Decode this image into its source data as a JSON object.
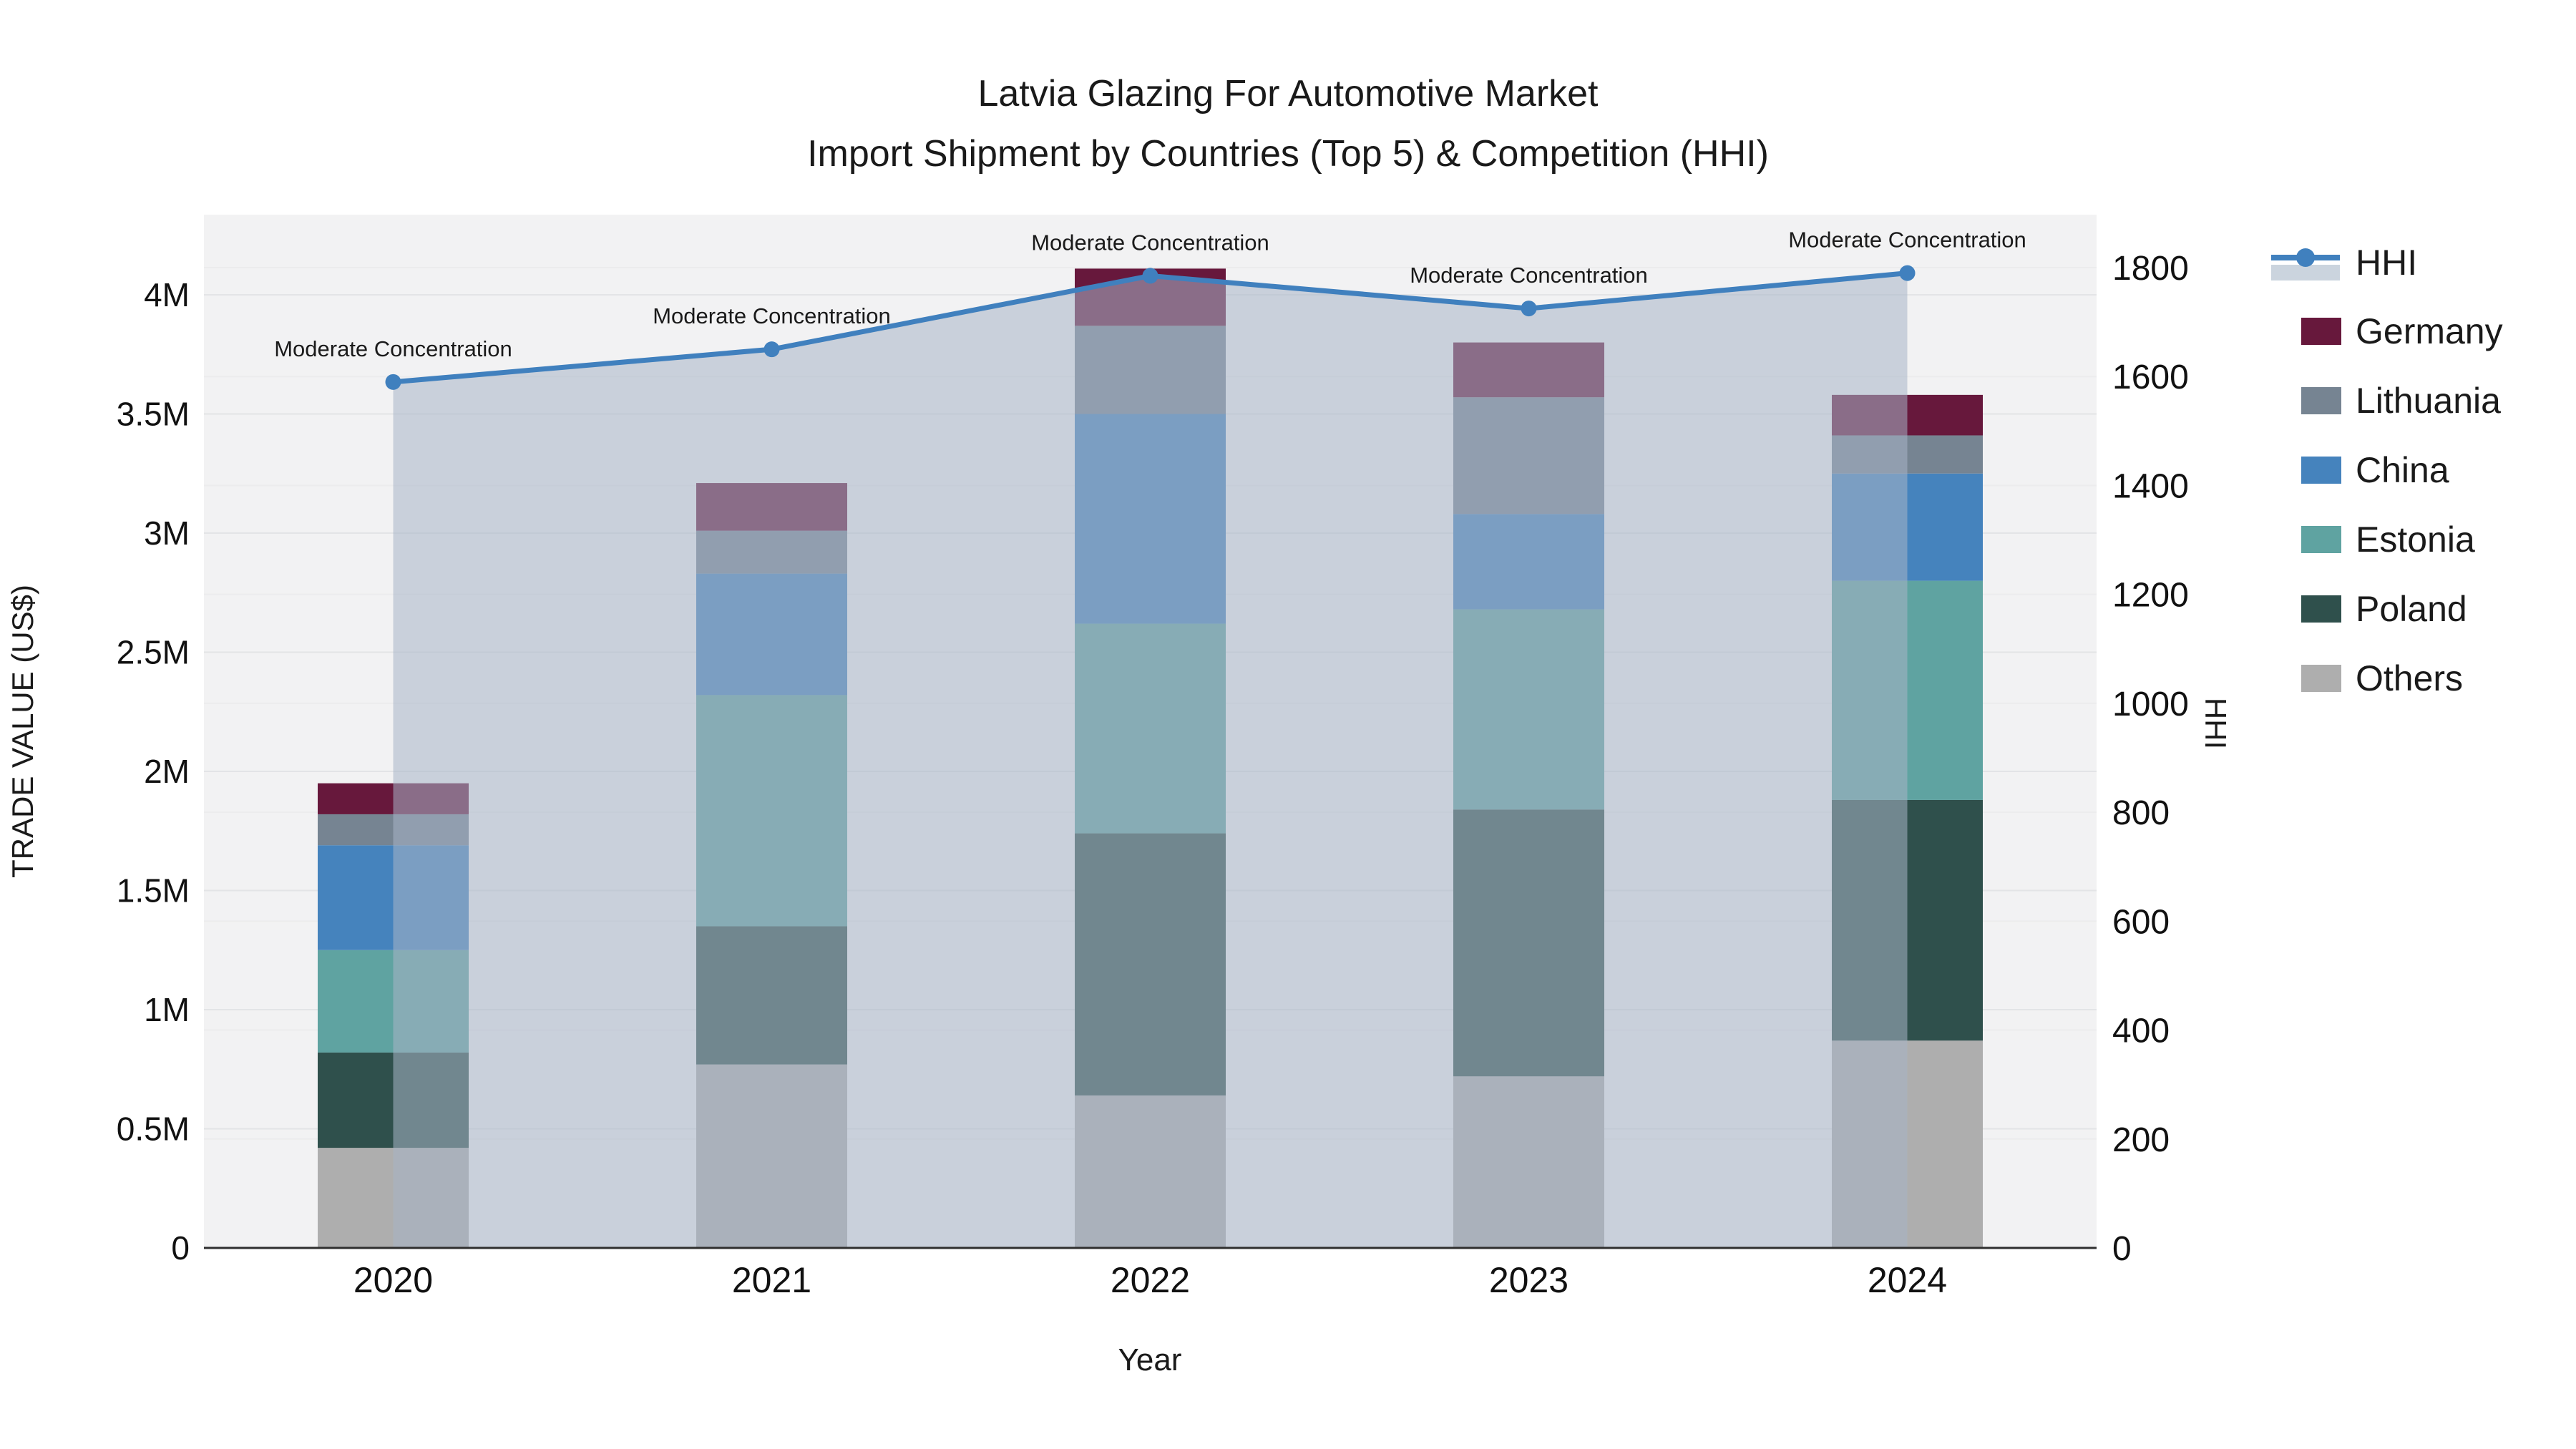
{
  "title": {
    "line1": "Latvia Glazing For Automotive Market",
    "line2": "Import Shipment by Countries (Top 5) & Competition (HHI)"
  },
  "axes": {
    "x": {
      "title": "Year",
      "categories": [
        "2020",
        "2021",
        "2022",
        "2023",
        "2024"
      ]
    },
    "y_left": {
      "title": "TRADE VALUE (US$)",
      "tick_labels": [
        "0",
        "0.5M",
        "1M",
        "1.5M",
        "2M",
        "2.5M",
        "3M",
        "3.5M",
        "4M"
      ],
      "tick_values": [
        0,
        0.5,
        1,
        1.5,
        2,
        2.5,
        3,
        3.5,
        4
      ]
    },
    "y_right": {
      "title": "HHI",
      "tick_labels": [
        "0",
        "200",
        "400",
        "600",
        "800",
        "1000",
        "1200",
        "1400",
        "1600",
        "1800"
      ],
      "tick_values": [
        0,
        200,
        400,
        600,
        800,
        1000,
        1200,
        1400,
        1600,
        1800
      ]
    }
  },
  "legend": {
    "items": [
      {
        "label": "HHI",
        "type": "line"
      },
      {
        "label": "Germany",
        "type": "swatch"
      },
      {
        "label": "Lithuania",
        "type": "swatch"
      },
      {
        "label": "China",
        "type": "swatch"
      },
      {
        "label": "Estonia",
        "type": "swatch"
      },
      {
        "label": "Poland",
        "type": "swatch"
      },
      {
        "label": "Others",
        "type": "swatch"
      }
    ]
  },
  "chart_data": {
    "type": "bar+line",
    "categories": [
      "2020",
      "2021",
      "2022",
      "2023",
      "2024"
    ],
    "value_unit": "million US$",
    "series": [
      {
        "name": "Others",
        "color": "#aeaeae",
        "values": [
          0.42,
          0.77,
          0.64,
          0.72,
          0.87
        ]
      },
      {
        "name": "Poland",
        "color": "#2f504c",
        "values": [
          0.4,
          0.58,
          1.1,
          1.12,
          1.01
        ]
      },
      {
        "name": "Estonia",
        "color": "#5fa3a1",
        "values": [
          0.43,
          0.97,
          0.88,
          0.84,
          0.92
        ]
      },
      {
        "name": "China",
        "color": "#4583bd",
        "values": [
          0.44,
          0.51,
          0.88,
          0.4,
          0.45
        ]
      },
      {
        "name": "Lithuania",
        "color": "#768492",
        "values": [
          0.13,
          0.18,
          0.37,
          0.49,
          0.16
        ]
      },
      {
        "name": "Germany",
        "color": "#67183c",
        "values": [
          0.13,
          0.2,
          0.24,
          0.23,
          0.17
        ]
      }
    ],
    "stack_totals": [
      1.95,
      3.21,
      4.11,
      3.8,
      3.58
    ],
    "line": {
      "name": "HHI",
      "color": "#4080be",
      "fill_color": "rgba(168,181,198,0.55)",
      "values": [
        1590,
        1650,
        1785,
        1725,
        1790
      ],
      "point_annotation": "Moderate Concentration"
    },
    "ylim_left": [
      0,
      4.35
    ],
    "ylim_right": [
      0,
      1900
    ],
    "legend_position": "top-right",
    "grid": true
  }
}
